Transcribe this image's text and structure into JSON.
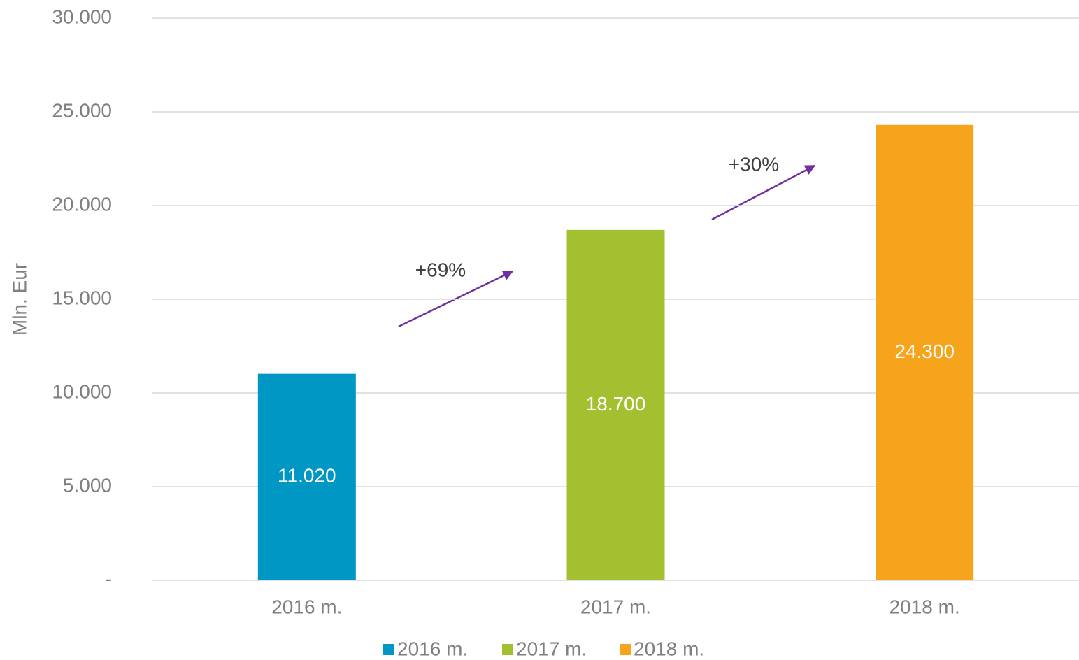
{
  "chart_data": {
    "type": "bar",
    "y_label": "Mln. Eur",
    "categories": [
      "2016 m.",
      "2017 m.",
      "2018 m."
    ],
    "values": [
      11020,
      18700,
      24300
    ],
    "value_labels": [
      "11.020",
      "18.700",
      "24.300"
    ],
    "colors": [
      "#0097c4",
      "#a2c030",
      "#f7a41d"
    ],
    "ylim": [
      0,
      30000
    ],
    "yticks": [
      {
        "value": 0,
        "label": "-"
      },
      {
        "value": 5000,
        "label": "5.000"
      },
      {
        "value": 10000,
        "label": "10.000"
      },
      {
        "value": 15000,
        "label": "15.000"
      },
      {
        "value": 20000,
        "label": "20.000"
      },
      {
        "value": 25000,
        "label": "25.000"
      },
      {
        "value": 30000,
        "label": "30.000"
      }
    ],
    "grid": true,
    "annotations": [
      "+69%",
      "+30%"
    ]
  }
}
